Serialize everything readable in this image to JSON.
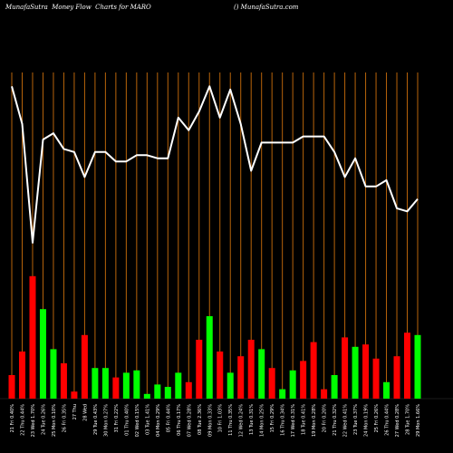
{
  "header": {
    "title": "MunafaSutra  Money Flow  Charts for MARO",
    "source": "() MunafaSutra.com"
  },
  "colors": {
    "background": "#000000",
    "grid": "#b8640a",
    "line": "#ffffff",
    "up": "#00ff00",
    "down": "#ff0000",
    "label": "#ffffff"
  },
  "chart_data": {
    "type": "bar+line",
    "title": "MunafaSutra  Money Flow  Charts for MARO",
    "series": [
      {
        "kind": "bar",
        "values": [
          10,
          20,
          52,
          38,
          21,
          15,
          3,
          27,
          13,
          13,
          9,
          11,
          12,
          2,
          6,
          5,
          11,
          7,
          25,
          35,
          20,
          11,
          18,
          25,
          21,
          13,
          4,
          12,
          16,
          24,
          4,
          10,
          26,
          22,
          23,
          17,
          7,
          18,
          28,
          27
        ],
        "colors": [
          "down",
          "down",
          "down",
          "up",
          "up",
          "down",
          "down",
          "down",
          "up",
          "up",
          "down",
          "up",
          "up",
          "up",
          "up",
          "up",
          "up",
          "down",
          "down",
          "up",
          "down",
          "up",
          "down",
          "down",
          "up",
          "down",
          "up",
          "up",
          "down",
          "down",
          "down",
          "up",
          "down",
          "up",
          "down",
          "down",
          "up",
          "down",
          "down",
          "up"
        ]
      },
      {
        "kind": "line",
        "values": [
          97,
          85,
          47,
          80,
          82,
          77,
          76,
          68,
          76,
          76,
          73,
          73,
          75,
          75,
          74,
          74,
          87,
          83,
          89,
          97,
          87,
          96,
          85,
          70,
          79,
          79,
          79,
          79,
          81,
          81,
          81,
          76,
          68,
          74,
          65,
          65,
          67,
          58,
          57,
          61
        ]
      }
    ],
    "x_labels": [
      "21 Fri 0.40%",
      "22 Thu 0.44%",
      "23 Wed 1.70%",
      "24 Tue 0.26%",
      "25 Mon 0.10%",
      "26 Fri 0.35%",
      "27 Thu",
      "28 Wed",
      "29 Tue 0.43%",
      "30 Mon 0.27%",
      "31 Fri 0.22%",
      "01 Thu 0.40%",
      "02 Wed 0.15%",
      "03 Tue 1.41%",
      "04 Mon 0.29%",
      "05 Fri 0.44%",
      "06 Thu 0.17%",
      "07 Wed 0.28%",
      "08 Tue 2.36%",
      "09 Mon 0.33%",
      "10 Fri 1.03%",
      "11 Thu 0.35%",
      "12 Wed 0.24%",
      "13 Tue 0.31%",
      "14 Mon 0.25%",
      "15 Fri 0.29%",
      "16 Thu 0.34%",
      "17 Wed 0.31%",
      "18 Tue 0.41%",
      "19 Mon 0.28%",
      "20 Fri 0.20%",
      "21 Thu 0.32%",
      "22 Wed 0.41%",
      "23 Tue 0.37%",
      "24 Mon 0.19%",
      "25 Fri 0.26%",
      "26 Thu 0.44%",
      "27 Wed 0.28%",
      "28 Tue 1.70%",
      "29 Mon 1.66%"
    ],
    "grid": true,
    "bar_ylim": [
      0,
      100
    ],
    "line_ylim": [
      0,
      100
    ],
    "xlabel": "",
    "ylabel": ""
  }
}
